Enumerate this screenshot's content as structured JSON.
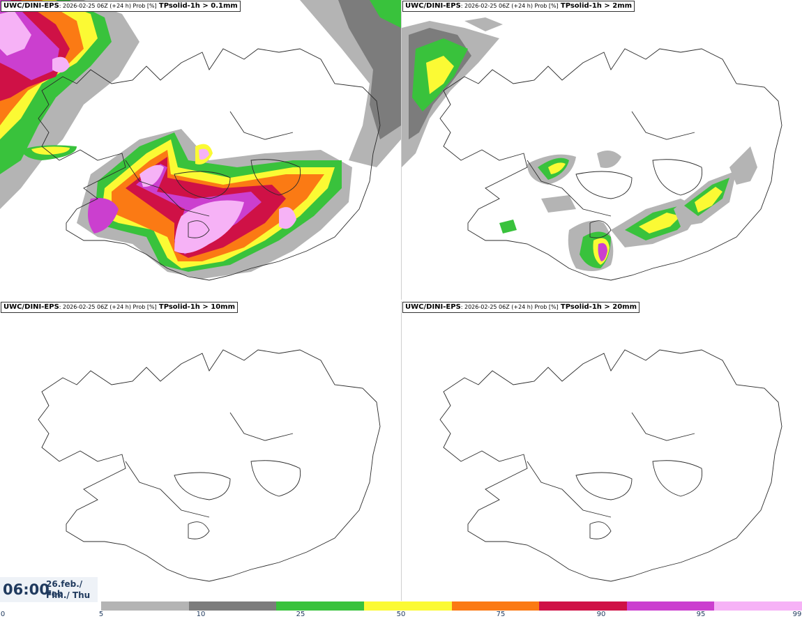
{
  "colors": {
    "prob": [
      "#b4b4b4",
      "#7c7c7c",
      "#39c23c",
      "#fbfa34",
      "#fb7a14",
      "#cf1146",
      "#cb3fcf",
      "#f6b2f6"
    ],
    "coast": "#2a2a2a"
  },
  "panels": [
    {
      "model": "UWC/DINI-EPS",
      "run": ": 2026-02-25 06Z (+24 h) Prob [%]",
      "param": "TPsolid-1h > 0.1mm"
    },
    {
      "model": "UWC/DINI-EPS",
      "run": ": 2026-02-25 06Z (+24 h) Prob [%]",
      "param": "TPsolid-1h > 2mm"
    },
    {
      "model": "UWC/DINI-EPS",
      "run": ": 2026-02-25 06Z (+24 h) Prob [%]",
      "param": "TPsolid-1h > 10mm"
    },
    {
      "model": "UWC/DINI-EPS",
      "run": ": 2026-02-25 06Z (+24 h) Prob [%]",
      "param": "TPsolid-1h > 20mm"
    }
  ],
  "time": {
    "clock": "06:00",
    "date": "26.feb./ Feb",
    "day": "Fim./ Thu"
  },
  "legend": {
    "ticks": [
      "0",
      "5",
      "10",
      "25",
      "50",
      "75",
      "90",
      "95",
      "99"
    ],
    "unit": "Prob [%]"
  }
}
